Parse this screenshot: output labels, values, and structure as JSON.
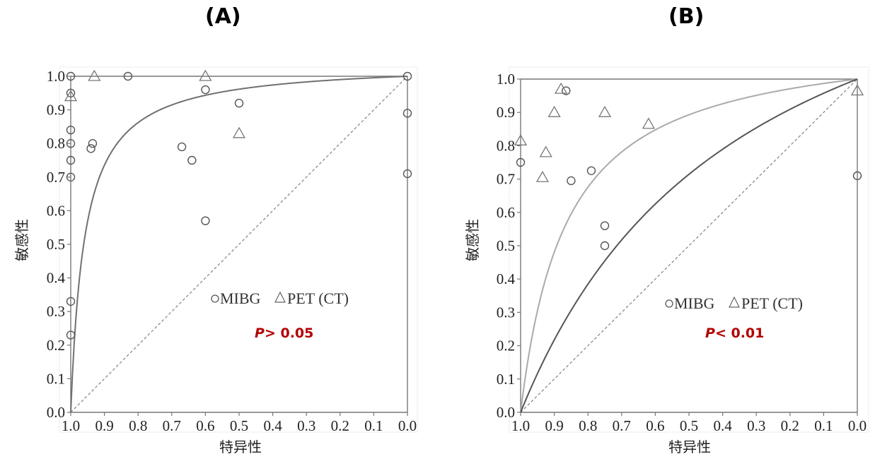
{
  "chart_data": [
    {
      "panel_label": "(A)",
      "type": "scatter",
      "xlabel": "特异性",
      "ylabel": "敏感性",
      "xlim": [
        1.0,
        0.0
      ],
      "ylim": [
        0.0,
        1.0
      ],
      "x_ticks": [
        "1.0",
        "0.9",
        "0.8",
        "0.7",
        "0.6",
        "0.5",
        "0.4",
        "0.3",
        "0.2",
        "0.1",
        "0.0"
      ],
      "y_ticks": [
        "0.0",
        "0.1",
        "0.2",
        "0.3",
        "0.4",
        "0.5",
        "0.6",
        "0.7",
        "0.8",
        "0.9",
        "1.0"
      ],
      "legend": {
        "mibg": "MIBG",
        "pet": "PET (CT)"
      },
      "annotation": {
        "p": "P",
        "rest": "> 0.05"
      },
      "series": [
        {
          "name": "MIBG",
          "marker": "circle",
          "points": [
            [
              1.0,
              1.0
            ],
            [
              1.0,
              0.95
            ],
            [
              1.0,
              0.84
            ],
            [
              1.0,
              0.8
            ],
            [
              1.0,
              0.75
            ],
            [
              1.0,
              0.7
            ],
            [
              1.0,
              0.33
            ],
            [
              1.0,
              0.23
            ],
            [
              0.83,
              1.0
            ],
            [
              0.935,
              0.8
            ],
            [
              0.94,
              0.785
            ],
            [
              0.67,
              0.79
            ],
            [
              0.64,
              0.75
            ],
            [
              0.6,
              0.96
            ],
            [
              0.5,
              0.92
            ],
            [
              0.6,
              0.57
            ],
            [
              0.0,
              1.0
            ],
            [
              0.0,
              0.89
            ],
            [
              0.0,
              0.71
            ]
          ]
        },
        {
          "name": "PET (CT)",
          "marker": "triangle",
          "points": [
            [
              1.0,
              0.94
            ],
            [
              0.93,
              1.0
            ],
            [
              0.6,
              1.0
            ],
            [
              0.5,
              0.83
            ]
          ]
        }
      ],
      "curves": [
        {
          "color": "#707070",
          "b": 0.04
        }
      ]
    },
    {
      "panel_label": "(B)",
      "type": "scatter",
      "xlabel": "特异性",
      "ylabel": "敏感性",
      "xlim": [
        1.0,
        0.0
      ],
      "ylim": [
        0.0,
        1.0
      ],
      "x_ticks": [
        "1.0",
        "0.9",
        "0.8",
        "0.7",
        "0.6",
        "0.5",
        "0.4",
        "0.3",
        "0.2",
        "0.1",
        "0.0"
      ],
      "y_ticks": [
        "0.0",
        "0.1",
        "0.2",
        "0.3",
        "0.4",
        "0.5",
        "0.6",
        "0.7",
        "0.8",
        "0.9",
        "1.0"
      ],
      "legend": {
        "mibg": "MIBG",
        "pet": "PET (CT)"
      },
      "annotation": {
        "p": "P",
        "rest": "< 0.01"
      },
      "series": [
        {
          "name": "MIBG",
          "marker": "circle",
          "points": [
            [
              1.0,
              0.75
            ],
            [
              0.865,
              0.965
            ],
            [
              0.85,
              0.695
            ],
            [
              0.79,
              0.725
            ],
            [
              0.75,
              0.56
            ],
            [
              0.75,
              0.5
            ],
            [
              0.0,
              0.71
            ]
          ]
        },
        {
          "name": "PET (CT)",
          "marker": "triangle",
          "points": [
            [
              1.0,
              0.815
            ],
            [
              0.88,
              0.97
            ],
            [
              0.9,
              0.9
            ],
            [
              0.925,
              0.78
            ],
            [
              0.935,
              0.705
            ],
            [
              0.75,
              0.9
            ],
            [
              0.62,
              0.865
            ],
            [
              0.0,
              0.965
            ]
          ]
        }
      ],
      "curves": [
        {
          "color": "#aaaaaa",
          "b": 0.12
        },
        {
          "color": "#555555",
          "b": 0.4
        }
      ]
    }
  ]
}
